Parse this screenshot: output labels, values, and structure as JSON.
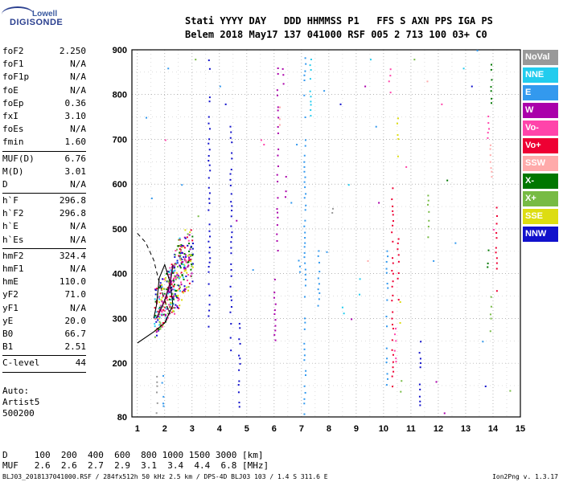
{
  "logo": {
    "top": "Lowell",
    "main": "DIGISONDE"
  },
  "header": {
    "line1": "Stati YYYY DAY   DDD HHMMSS P1   FFS S AXN PPS IGA PS",
    "line2": "Belem 2018 May17 137 041000 RSF 005 2 713 100 03+ C0"
  },
  "params": [
    {
      "name": "foF2",
      "value": "2.250"
    },
    {
      "name": "foF1",
      "value": "N/A"
    },
    {
      "name": "foF1p",
      "value": "N/A"
    },
    {
      "name": "foE",
      "value": "N/A"
    },
    {
      "name": "foEp",
      "value": "0.36"
    },
    {
      "name": "fxI",
      "value": "3.10"
    },
    {
      "name": "foEs",
      "value": "N/A"
    },
    {
      "name": "fmin",
      "value": "1.60"
    },
    {
      "sep": true
    },
    {
      "name": "MUF(D)",
      "value": "6.76"
    },
    {
      "name": "M(D)",
      "value": "3.01"
    },
    {
      "name": "D",
      "value": "N/A"
    },
    {
      "sep": true
    },
    {
      "name": "h`F",
      "value": "296.8"
    },
    {
      "name": "h`F2",
      "value": "296.8"
    },
    {
      "name": "h`E",
      "value": "N/A"
    },
    {
      "name": "h`Es",
      "value": "N/A"
    },
    {
      "sep": true
    },
    {
      "name": "hmF2",
      "value": "324.4"
    },
    {
      "name": "hmF1",
      "value": "N/A"
    },
    {
      "name": "hmE",
      "value": "110.0"
    },
    {
      "name": "yF2",
      "value": "71.0"
    },
    {
      "name": "yF1",
      "value": "N/A"
    },
    {
      "name": "yE",
      "value": "20.0"
    },
    {
      "name": "B0",
      "value": "66.7"
    },
    {
      "name": "B1",
      "value": "2.51"
    },
    {
      "sep": true
    },
    {
      "name": "C-level",
      "value": "44"
    },
    {
      "sep": true
    }
  ],
  "auto": {
    "line1": "Auto:",
    "line2": "Artist5",
    "line3": "500200"
  },
  "muf_table": {
    "d_row": "D     100  200  400  600  800 1000 1500 3000 [km]",
    "muf_row": "MUF   2.6  2.6  2.7  2.9  3.1  3.4  4.4  6.8 [MHz]"
  },
  "footer": {
    "left": "BLJ03_2018137041000.RSF / 284fx512h 50 kHz 2.5 km / DPS-4D BLJ03 103 / 1.4 S 311.6 E",
    "right": "Ion2Png v. 1.3.17"
  },
  "legend": [
    {
      "label": "NoVal",
      "color": "#999999"
    },
    {
      "label": "NNE",
      "color": "#22ccee"
    },
    {
      "label": "E",
      "color": "#3399ee"
    },
    {
      "label": "W",
      "color": "#aa00aa"
    },
    {
      "label": "Vo-",
      "color": "#ff44aa"
    },
    {
      "label": "Vo+",
      "color": "#ee0033"
    },
    {
      "label": "SSW",
      "color": "#ffaaaa"
    },
    {
      "label": "X-",
      "color": "#007700"
    },
    {
      "label": "X+",
      "color": "#77bb44"
    },
    {
      "label": "SSE",
      "color": "#dddd11"
    },
    {
      "label": "NNW",
      "color": "#1111cc"
    }
  ],
  "chart_data": {
    "type": "scatter",
    "xlim": [
      0.8,
      15.0
    ],
    "ylim": [
      80,
      900
    ],
    "x_ticks": [
      1,
      2,
      3,
      4,
      5,
      6,
      7,
      8,
      9,
      10,
      11,
      12,
      13,
      14,
      15
    ],
    "y_ticks": [
      80,
      200,
      300,
      400,
      500,
      600,
      700,
      800,
      900
    ],
    "grid": "dotted",
    "legend_position": "right",
    "series": [
      {
        "name": "NNW",
        "color": "#1111cc",
        "columns": [
          [
            3.6,
            280,
            890
          ],
          [
            4.4,
            230,
            740
          ],
          [
            4.7,
            90,
            300
          ],
          [
            11.3,
            90,
            260
          ],
          [
            3.0,
            420,
            480
          ]
        ]
      },
      {
        "name": "E",
        "color": "#3399ee",
        "columns": [
          [
            7.1,
            85,
            890
          ],
          [
            7.6,
            330,
            460
          ],
          [
            10.1,
            150,
            460
          ],
          [
            6.9,
            400,
            450
          ],
          [
            1.9,
            100,
            180
          ]
        ]
      },
      {
        "name": "W",
        "color": "#aa00aa",
        "columns": [
          [
            6.1,
            450,
            880
          ],
          [
            6.0,
            250,
            400
          ],
          [
            6.3,
            820,
            880
          ],
          [
            6.4,
            570,
            640
          ]
        ]
      },
      {
        "name": "Vo+",
        "color": "#ee0033",
        "columns": [
          [
            10.3,
            120,
            600
          ],
          [
            10.5,
            330,
            500
          ],
          [
            14.1,
            350,
            560
          ]
        ]
      },
      {
        "name": "Vo-",
        "color": "#ff44aa",
        "columns": [
          [
            10.2,
            780,
            880
          ],
          [
            10.4,
            200,
            300
          ],
          [
            13.8,
            700,
            760
          ]
        ]
      },
      {
        "name": "SSE",
        "color": "#dddd11",
        "columns": [
          [
            10.5,
            650,
            760
          ],
          [
            10.6,
            290,
            350
          ]
        ]
      },
      {
        "name": "X+",
        "color": "#77bb44",
        "columns": [
          [
            11.6,
            480,
            620
          ],
          [
            13.9,
            260,
            360
          ],
          [
            10.6,
            120,
            170
          ]
        ]
      },
      {
        "name": "X-",
        "color": "#007700",
        "columns": [
          [
            13.9,
            780,
            880
          ],
          [
            13.8,
            400,
            460
          ]
        ]
      },
      {
        "name": "NNE",
        "color": "#22ccee",
        "columns": [
          [
            7.3,
            750,
            890
          ],
          [
            8.5,
            300,
            360
          ],
          [
            9.1,
            340,
            400
          ]
        ]
      },
      {
        "name": "SSW",
        "color": "#ffaaaa",
        "columns": [
          [
            6.2,
            730,
            780
          ],
          [
            11.6,
            830,
            880
          ],
          [
            13.9,
            600,
            700
          ]
        ]
      },
      {
        "name": "NoVal",
        "color": "#999999",
        "columns": [
          [
            1.7,
            90,
            180
          ],
          [
            8.1,
            520,
            560
          ]
        ]
      }
    ],
    "clusters": [
      {
        "x": [
          1.6,
          3.0
        ],
        "y": [
          290,
          560
        ],
        "colors": [
          "#aa00aa",
          "#ee0033",
          "#007700",
          "#77bb44",
          "#dddd11",
          "#22ccee",
          "#1111cc",
          "#ff44aa"
        ]
      }
    ],
    "profile_solid": [
      [
        1.0,
        245
      ],
      [
        1.6,
        270
      ],
      [
        2.0,
        290
      ],
      [
        2.3,
        330
      ],
      [
        2.2,
        380
      ],
      [
        2.0,
        420
      ],
      [
        1.8,
        390
      ],
      [
        1.7,
        330
      ],
      [
        1.6,
        300
      ]
    ],
    "profile_dashed": [
      [
        1.0,
        490
      ],
      [
        1.3,
        470
      ],
      [
        1.6,
        430
      ],
      [
        1.8,
        380
      ],
      [
        2.0,
        340
      ],
      [
        2.2,
        310
      ]
    ],
    "trace_dark": [
      [
        1.7,
        300
      ],
      [
        2.0,
        340
      ],
      [
        2.2,
        380
      ],
      [
        2.3,
        420
      ]
    ]
  }
}
